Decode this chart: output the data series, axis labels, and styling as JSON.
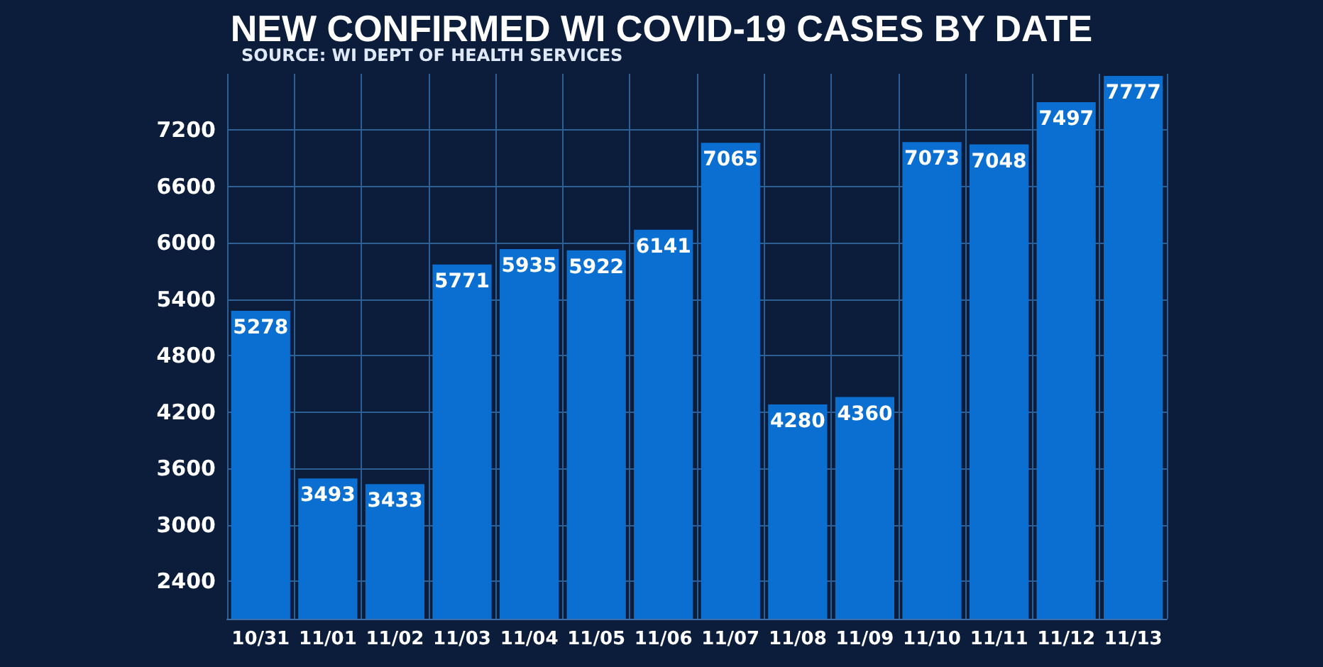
{
  "chart_data": {
    "type": "bar",
    "title": "NEW CONFIRMED WI COVID-19 CASES BY DATE",
    "annotations": [
      "SOURCE: WI DEPT OF HEALTH SERVICES"
    ],
    "categories": [
      "10/31",
      "11/01",
      "11/02",
      "11/03",
      "11/04",
      "11/05",
      "11/06",
      "11/07",
      "11/08",
      "11/09",
      "11/10",
      "11/11",
      "11/12",
      "11/13"
    ],
    "values": [
      5278,
      3493,
      3433,
      5771,
      5935,
      5922,
      6141,
      7065,
      4280,
      4360,
      7073,
      7048,
      7497,
      7777
    ],
    "color": "#0a6fd1",
    "ylim": [
      2000,
      7800
    ],
    "yticks": [
      2400,
      3000,
      3600,
      4200,
      4800,
      5400,
      6000,
      6600,
      7200
    ],
    "grid": true,
    "data_labels": true
  }
}
